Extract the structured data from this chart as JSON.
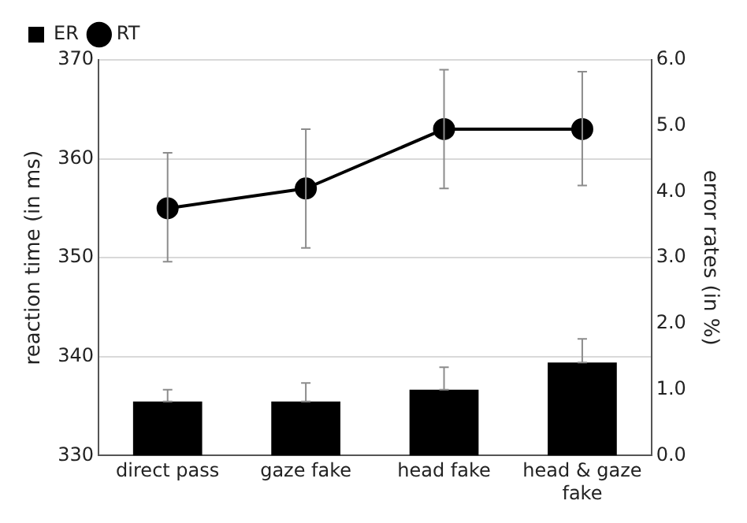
{
  "chart_data": {
    "type": "bar",
    "categories": [
      "direct pass",
      "gaze fake",
      "head fake",
      "head & gaze fake"
    ],
    "ylabel": "reaction time (in ms)",
    "y2label": "error rates (in %)",
    "series": [
      {
        "name": "ER",
        "axis": "y2",
        "color": "#000000",
        "values": [
          0.82,
          0.82,
          1.0,
          1.41
        ],
        "errors": [
          [
            0.82,
            1.0
          ],
          [
            0.82,
            1.1
          ],
          [
            1.0,
            1.34
          ],
          [
            1.41,
            1.77
          ]
        ]
      },
      {
        "name": "RT",
        "type": "line",
        "axis": "y",
        "color": "#000000",
        "marker": "circle",
        "values": [
          355,
          357,
          363,
          363
        ],
        "errors": [
          [
            349.6,
            360.6
          ],
          [
            351,
            363
          ],
          [
            357,
            369
          ],
          [
            357.3,
            368.8
          ]
        ]
      }
    ],
    "ylim": [
      330,
      370
    ],
    "yticks": [
      330,
      340,
      350,
      360,
      370
    ],
    "y2lim": [
      0,
      6
    ],
    "y2ticks": [
      {
        "value": 0,
        "label": "0.0"
      },
      {
        "value": 1,
        "label": "1.0"
      },
      {
        "value": 2,
        "label": "2.0"
      },
      {
        "value": 3,
        "label": "3.0"
      },
      {
        "value": 4,
        "label": "4.0"
      },
      {
        "value": 5,
        "label": "5.0"
      },
      {
        "value": 6,
        "label": "6.0"
      }
    ],
    "grid": "y",
    "legend": "top left"
  }
}
